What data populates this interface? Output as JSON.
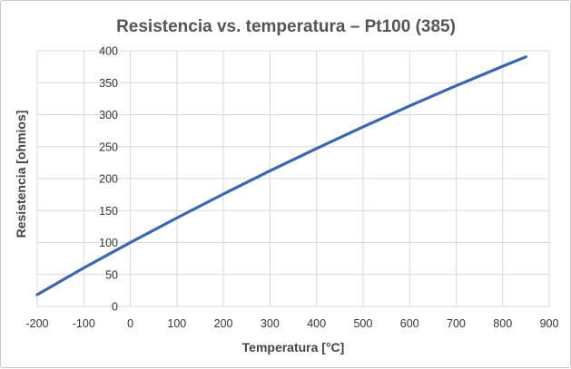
{
  "chart_data": {
    "type": "line",
    "title": "Resistencia vs. temperatura – Pt100 (385)",
    "xlabel": "Temperatura [°C]",
    "ylabel": "Resistencia [ohmios]",
    "xlim": [
      -200,
      900
    ],
    "ylim": [
      0,
      400
    ],
    "x_ticks": [
      -200,
      -100,
      0,
      100,
      200,
      300,
      400,
      500,
      600,
      700,
      800,
      900
    ],
    "y_ticks": [
      0,
      50,
      100,
      150,
      200,
      250,
      300,
      350,
      400
    ],
    "grid": true,
    "legend": "none",
    "series": [
      {
        "color": "#3a66b0",
        "x": [
          -200,
          -100,
          0,
          100,
          200,
          300,
          400,
          500,
          600,
          700,
          800,
          850
        ],
        "y": [
          18.5,
          60.3,
          100.0,
          138.5,
          175.9,
          212.1,
          247.1,
          280.9,
          313.7,
          345.3,
          375.7,
          390.5
        ]
      }
    ]
  }
}
